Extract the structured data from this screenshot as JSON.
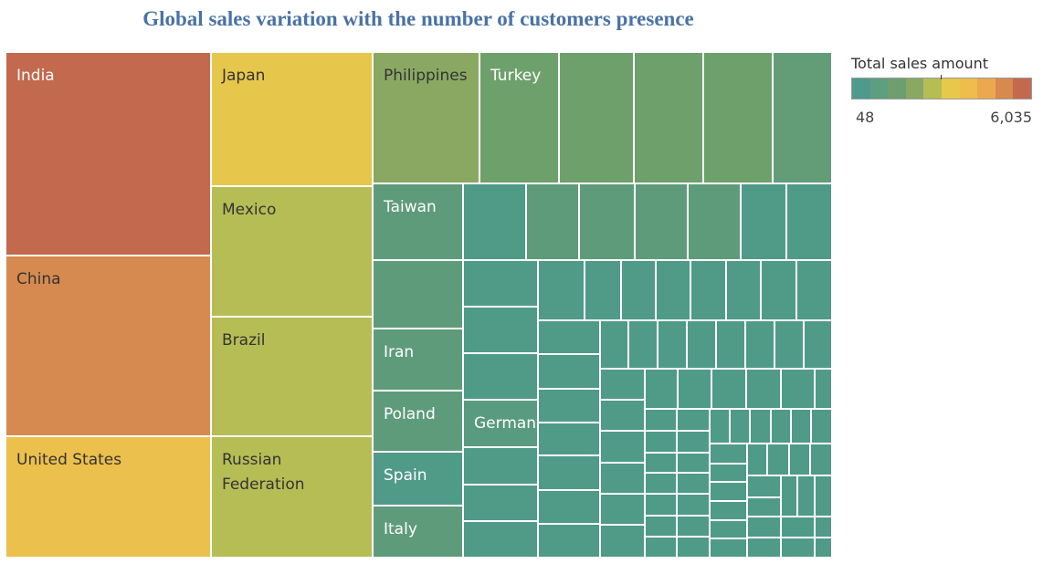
{
  "chart_data": {
    "type": "treemap",
    "title": "Global sales variation with the number of customers presence",
    "legend": {
      "title": "Total sales amount",
      "min_label": "48",
      "max_label": "6,035",
      "ramp": [
        "#4e9a8c",
        "#5d9e80",
        "#6d9f6e",
        "#8aa862",
        "#b5bd55",
        "#e8c84a",
        "#efbd4c",
        "#eba84e",
        "#d8894c",
        "#c4694f"
      ]
    },
    "labeled_items": [
      {
        "name": "India",
        "color": "#c3694e"
      },
      {
        "name": "China",
        "color": "#d78a4f"
      },
      {
        "name": "United States",
        "color": "#ecc04d"
      },
      {
        "name": "Japan",
        "color": "#e6c74b"
      },
      {
        "name": "Mexico",
        "color": "#b6bd55"
      },
      {
        "name": "Brazil",
        "color": "#b6bd55"
      },
      {
        "name": "Russian Federation",
        "color": "#b6bd55"
      },
      {
        "name": "Philippines",
        "color": "#8aa862"
      },
      {
        "name": "Turkey",
        "color": "#6ea06c"
      },
      {
        "name": "Taiwan",
        "color": "#5e9b7b"
      },
      {
        "name": "Iran",
        "color": "#5e9b7b"
      },
      {
        "name": "Poland",
        "color": "#5e9b7b"
      },
      {
        "name": "Spain",
        "color": "#509a88"
      },
      {
        "name": "Germany",
        "color": "#599b80"
      },
      {
        "name": "Italy",
        "color": "#5e9b7b"
      }
    ]
  }
}
